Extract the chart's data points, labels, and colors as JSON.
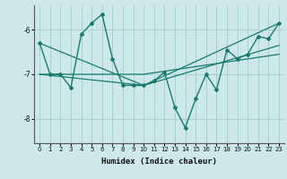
{
  "xlabel": "Humidex (Indice chaleur)",
  "ylabel": "",
  "bg_color": "#cce8e8",
  "grid_color": "#aad0d0",
  "line_color": "#1a7a6e",
  "yticks": [
    -8,
    -7,
    -6
  ],
  "xlim": [
    -0.5,
    23.5
  ],
  "ylim": [
    -8.55,
    -5.45
  ],
  "line1_x": [
    0,
    1,
    2,
    3,
    4,
    5,
    6,
    7,
    8,
    9,
    10,
    11,
    12,
    13,
    14,
    15,
    16,
    17,
    18,
    19,
    20,
    21,
    22,
    23
  ],
  "line1_y": [
    -6.3,
    -7.0,
    -7.0,
    -7.3,
    -6.1,
    -5.85,
    -5.65,
    -6.65,
    -7.25,
    -7.25,
    -7.25,
    -7.15,
    -6.95,
    -7.75,
    -8.2,
    -7.55,
    -7.0,
    -7.35,
    -6.45,
    -6.65,
    -6.55,
    -6.15,
    -6.2,
    -5.85
  ],
  "line2_x": [
    0,
    10,
    23
  ],
  "line2_y": [
    -6.3,
    -7.25,
    -5.85
  ],
  "line3_x": [
    0,
    10,
    23
  ],
  "line3_y": [
    -7.0,
    -7.0,
    -6.55
  ],
  "line4_x": [
    0,
    10,
    23
  ],
  "line4_y": [
    -7.0,
    -7.25,
    -6.35
  ]
}
